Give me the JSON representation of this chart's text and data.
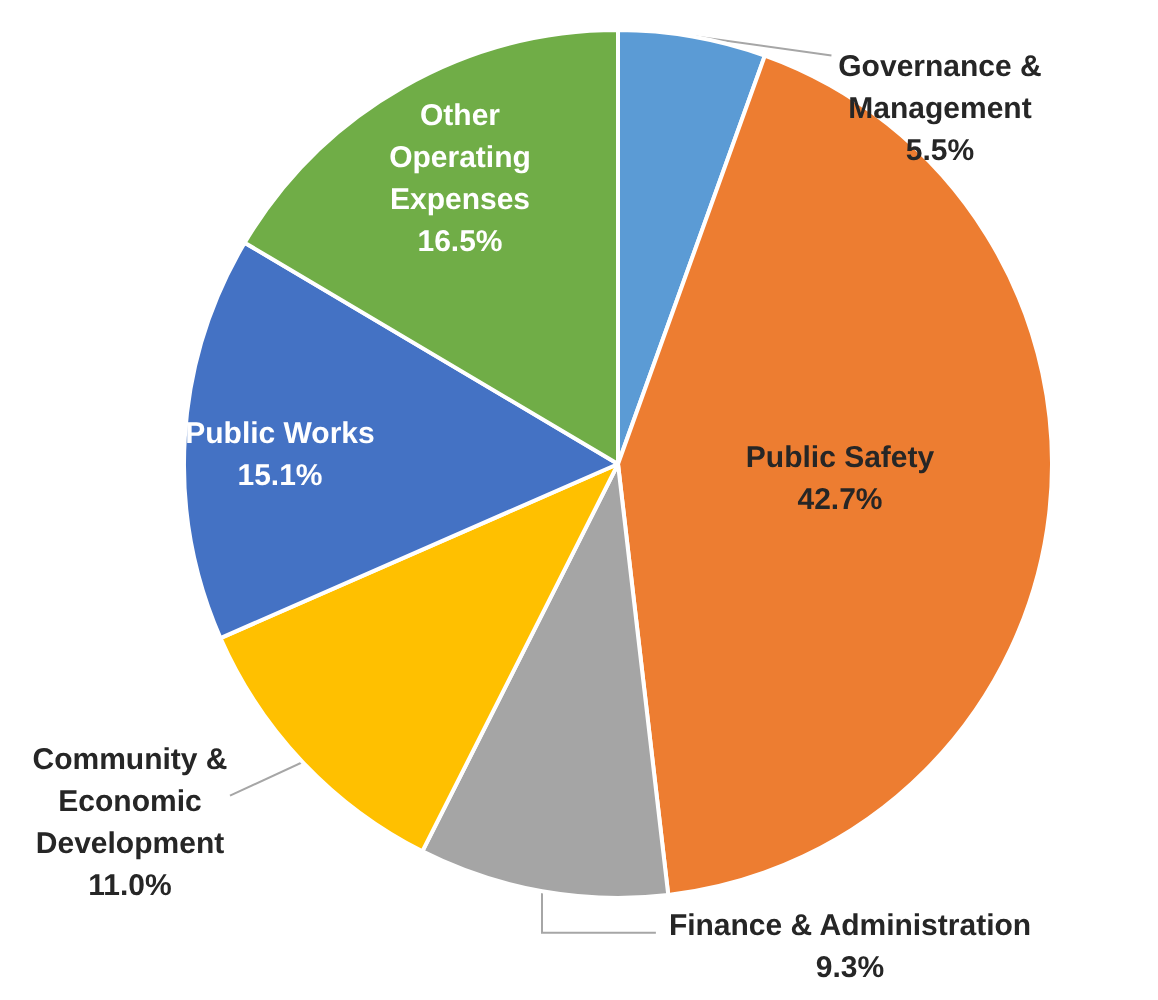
{
  "chart_data": {
    "type": "pie",
    "categories": [
      "Governance & Management",
      "Public Safety",
      "Finance & Administration",
      "Community & Economic Development",
      "Public Works",
      "Other Operating Expenses"
    ],
    "values": [
      5.5,
      42.7,
      9.3,
      11.0,
      15.1,
      16.5
    ],
    "colors": [
      "#5b9bd5",
      "#ed7d31",
      "#a5a5a5",
      "#ffc000",
      "#4472c4",
      "#70ad47"
    ],
    "value_labels": [
      "5.5%",
      "42.7%",
      "9.3%",
      "11.0%",
      "15.1%",
      "16.5%"
    ],
    "legend": false
  }
}
